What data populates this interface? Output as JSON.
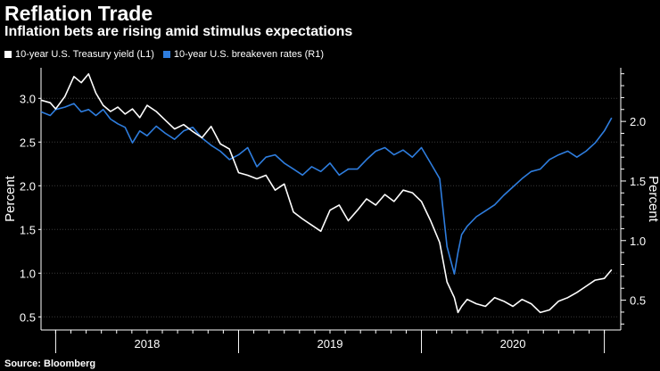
{
  "chart_data": {
    "type": "line",
    "title": "Reflation Trade",
    "subtitle": "Inflation bets are rising amid stimulus expectations",
    "source": "Source: Bloomberg",
    "x_categories": [
      "2018",
      "2019",
      "2020"
    ],
    "left_axis": {
      "label": "Percent",
      "ticks": [
        "0.5",
        "1.0",
        "1.5",
        "2.0",
        "2.5",
        "3.0"
      ],
      "ylim": [
        0.35,
        3.35
      ]
    },
    "right_axis": {
      "label": "Percent",
      "ticks": [
        "0.5",
        "1.0",
        "1.5",
        "2.0"
      ],
      "ylim": [
        0.25,
        2.45
      ]
    },
    "x_range": [
      2017.92,
      2021.08
    ],
    "series": [
      {
        "name": "10-year U.S. Treasury yield (L1)",
        "axis": "left",
        "color": "#ffffff",
        "x": [
          2017.92,
          2017.97,
          2018.0,
          2018.05,
          2018.1,
          2018.14,
          2018.18,
          2018.22,
          2018.26,
          2018.3,
          2018.34,
          2018.38,
          2018.42,
          2018.46,
          2018.5,
          2018.55,
          2018.6,
          2018.65,
          2018.7,
          2018.75,
          2018.8,
          2018.85,
          2018.9,
          2018.95,
          2019.0,
          2019.05,
          2019.1,
          2019.15,
          2019.2,
          2019.25,
          2019.3,
          2019.35,
          2019.4,
          2019.45,
          2019.5,
          2019.55,
          2019.6,
          2019.65,
          2019.7,
          2019.75,
          2019.8,
          2019.85,
          2019.9,
          2019.95,
          2020.0,
          2020.05,
          2020.1,
          2020.14,
          2020.18,
          2020.2,
          2020.22,
          2020.25,
          2020.3,
          2020.35,
          2020.4,
          2020.45,
          2020.5,
          2020.55,
          2020.6,
          2020.65,
          2020.7,
          2020.75,
          2020.8,
          2020.85,
          2020.9,
          2020.95,
          2021.0,
          2021.04
        ],
        "values": [
          2.98,
          2.95,
          2.88,
          3.02,
          3.25,
          3.18,
          3.28,
          3.06,
          2.92,
          2.85,
          2.9,
          2.82,
          2.88,
          2.78,
          2.92,
          2.85,
          2.75,
          2.65,
          2.7,
          2.62,
          2.55,
          2.68,
          2.48,
          2.42,
          2.15,
          2.12,
          2.08,
          2.12,
          1.95,
          2.02,
          1.7,
          1.62,
          1.55,
          1.48,
          1.72,
          1.78,
          1.6,
          1.72,
          1.85,
          1.78,
          1.9,
          1.82,
          1.95,
          1.92,
          1.82,
          1.6,
          1.35,
          0.9,
          0.72,
          0.55,
          0.62,
          0.7,
          0.65,
          0.62,
          0.72,
          0.68,
          0.62,
          0.7,
          0.65,
          0.55,
          0.58,
          0.68,
          0.72,
          0.78,
          0.85,
          0.92,
          0.94,
          1.04
        ]
      },
      {
        "name": "10-year U.S. breakeven rates (R1)",
        "axis": "right",
        "color": "#2e7dde",
        "x": [
          2017.92,
          2017.97,
          2018.0,
          2018.05,
          2018.1,
          2018.14,
          2018.18,
          2018.22,
          2018.26,
          2018.3,
          2018.34,
          2018.38,
          2018.42,
          2018.46,
          2018.5,
          2018.55,
          2018.6,
          2018.65,
          2018.7,
          2018.75,
          2018.8,
          2018.85,
          2018.9,
          2018.95,
          2019.0,
          2019.05,
          2019.1,
          2019.15,
          2019.2,
          2019.25,
          2019.3,
          2019.35,
          2019.4,
          2019.45,
          2019.5,
          2019.55,
          2019.6,
          2019.65,
          2019.7,
          2019.75,
          2019.8,
          2019.85,
          2019.9,
          2019.95,
          2020.0,
          2020.05,
          2020.1,
          2020.14,
          2020.18,
          2020.2,
          2020.22,
          2020.25,
          2020.3,
          2020.35,
          2020.4,
          2020.45,
          2020.5,
          2020.55,
          2020.6,
          2020.65,
          2020.7,
          2020.75,
          2020.8,
          2020.85,
          2020.9,
          2020.95,
          2021.0,
          2021.04
        ],
        "values": [
          2.08,
          2.05,
          2.1,
          2.12,
          2.15,
          2.08,
          2.1,
          2.05,
          2.1,
          2.02,
          1.98,
          1.95,
          1.82,
          1.92,
          1.88,
          1.96,
          1.9,
          1.85,
          1.92,
          1.95,
          1.86,
          1.8,
          1.75,
          1.68,
          1.72,
          1.78,
          1.62,
          1.7,
          1.72,
          1.65,
          1.6,
          1.55,
          1.62,
          1.58,
          1.65,
          1.55,
          1.6,
          1.6,
          1.68,
          1.75,
          1.78,
          1.72,
          1.76,
          1.7,
          1.78,
          1.65,
          1.52,
          0.95,
          0.72,
          0.9,
          1.05,
          1.12,
          1.2,
          1.25,
          1.3,
          1.38,
          1.45,
          1.52,
          1.58,
          1.6,
          1.68,
          1.72,
          1.75,
          1.7,
          1.75,
          1.82,
          1.92,
          2.03
        ]
      }
    ]
  }
}
